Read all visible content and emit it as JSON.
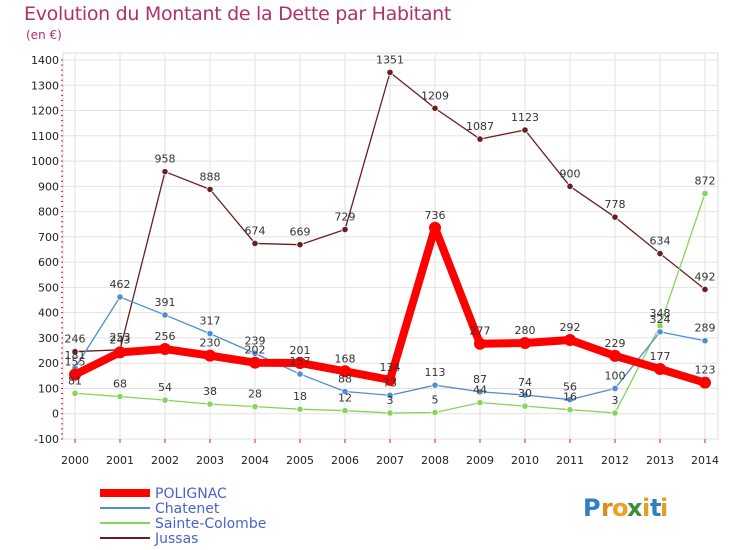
{
  "chart_data": {
    "type": "line",
    "title": "Evolution du Montant de la Dette par Habitant",
    "subtitle": "(en €)",
    "x": [
      "2000",
      "2001",
      "2002",
      "2003",
      "2004",
      "2005",
      "2006",
      "2007",
      "2008",
      "2009",
      "2010",
      "2011",
      "2012",
      "2013",
      "2014"
    ],
    "ylim": [
      -100,
      1400
    ],
    "yticks": [
      -100,
      0,
      100,
      200,
      300,
      400,
      500,
      600,
      700,
      800,
      900,
      1000,
      1100,
      1200,
      1300,
      1400
    ],
    "grid": true,
    "legend_position": "bottom-left",
    "series": [
      {
        "name": "POLIGNAC",
        "color": "#ff0000",
        "values": [
          155,
          243,
          256,
          230,
          202,
          201,
          168,
          134,
          736,
          277,
          280,
          292,
          229,
          177,
          123
        ]
      },
      {
        "name": "Chatenet",
        "color": "#4d8ed0",
        "values": [
          181,
          462,
          391,
          317,
          239,
          157,
          88,
          73,
          113,
          87,
          74,
          56,
          100,
          324,
          289
        ]
      },
      {
        "name": "Sainte-Colombe",
        "color": "#88d45a",
        "values": [
          81,
          68,
          54,
          38,
          28,
          18,
          12,
          3,
          5,
          44,
          30,
          16,
          3,
          348,
          872
        ]
      },
      {
        "name": "Jussas",
        "color": "#6b1d20",
        "values": [
          246,
          253,
          958,
          888,
          674,
          669,
          729,
          1351,
          1209,
          1087,
          1123,
          900,
          778,
          634,
          492
        ]
      }
    ],
    "data_labels": [
      [
        "",
        "",
        "",
        "",
        "",
        "",
        "",
        "",
        "",
        "",
        "",
        "",
        "",
        "",
        ""
      ],
      [
        "",
        "",
        "",
        "",
        "",
        "",
        "",
        "",
        "",
        "",
        "",
        "",
        "",
        "",
        ""
      ],
      [
        "",
        "",
        "",
        "",
        "",
        "",
        "",
        "",
        "",
        "",
        "",
        "",
        "",
        "",
        ""
      ],
      [
        "",
        "",
        "",
        "",
        "",
        "",
        "",
        "",
        "",
        "",
        "",
        "",
        "",
        "",
        ""
      ]
    ]
  },
  "brand": {
    "logo_text": "Proxiti",
    "letters": [
      "P",
      "r",
      "o",
      "x",
      "i",
      "t",
      "i"
    ]
  }
}
